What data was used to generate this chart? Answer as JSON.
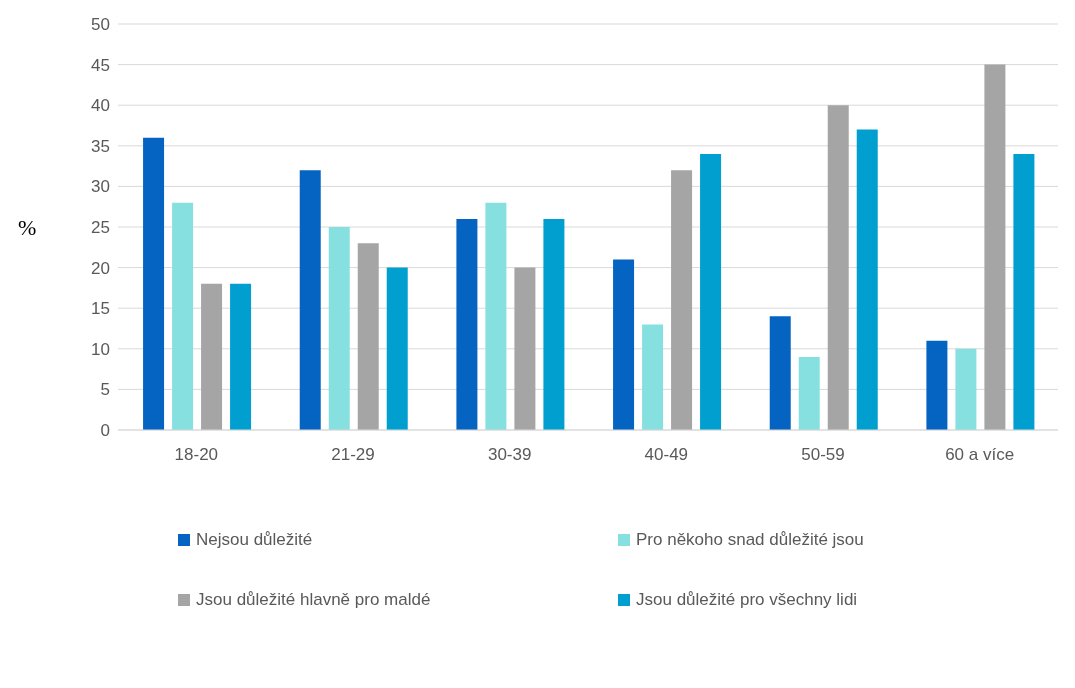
{
  "chart_data": {
    "type": "bar",
    "ylabel": "%",
    "categories": [
      "18-20",
      "21-29",
      "30-39",
      "40-49",
      "50-59",
      "60 a více"
    ],
    "series": [
      {
        "name": "Nejsou důležité",
        "color": "#0563c1",
        "values": [
          36,
          32,
          26,
          21,
          14,
          11
        ]
      },
      {
        "name": "Pro někoho snad důležité jsou",
        "color": "#87e0e0",
        "values": [
          28,
          25,
          28,
          13,
          9,
          10
        ]
      },
      {
        "name": "Jsou důležité hlavně pro maldé",
        "color": "#a5a5a5",
        "values": [
          18,
          23,
          20,
          32,
          40,
          45
        ]
      },
      {
        "name": "Jsou důležité pro všechny lidi",
        "color": "#009fd0",
        "values": [
          18,
          20,
          26,
          34,
          37,
          34
        ]
      }
    ],
    "ylim": [
      0,
      50
    ],
    "yticks": [
      0,
      5,
      10,
      15,
      20,
      25,
      30,
      35,
      40,
      45,
      50
    ],
    "grid": "y",
    "legend": "bottom"
  }
}
